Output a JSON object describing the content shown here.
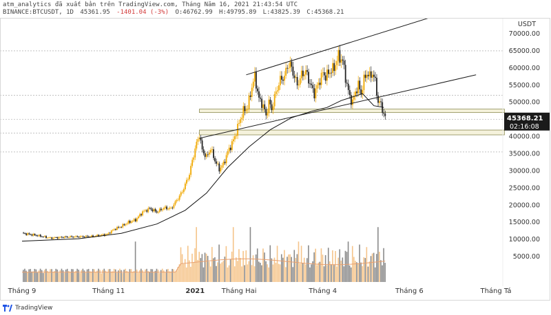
{
  "header": {
    "line1": "atm_analytics đã xuất bản trên TradingView.com, Tháng Năm 16, 2021 21:43:54 UTC",
    "symbol": "BINANCE:BTCUSDT, 1D",
    "last": "45361.95",
    "change": "-1401.04 (-3%)",
    "open": "O:46762.99",
    "high": "H:49795.89",
    "low": "L:43825.39",
    "close": "C:45368.21"
  },
  "footer": {
    "brand": "TradingView"
  },
  "colors": {
    "bull": "#f0a800",
    "bear": "#222222",
    "trend": "#1a1a1a",
    "zone": "#8a8a50",
    "volUp": "#f5c48a",
    "volDown": "#8a8a8a",
    "volMA": "#e8a070",
    "priceTag": "#1a1a1a"
  },
  "chart_data": {
    "type": "candlestick",
    "currency_label": "USDT",
    "y_ticks": [
      70000,
      65000,
      60000,
      55000,
      50000,
      45000,
      40000,
      35000,
      30000,
      25000,
      20000,
      15000,
      10000,
      5000
    ],
    "y_tick_labels": [
      "70000.00",
      "65000.00",
      "60000.00",
      "55000.00",
      "50000.00",
      "",
      "40000.00",
      "35000.00",
      "30000.00",
      "25000.00",
      "20000.00",
      "15000.00",
      "10000.00",
      "5000.00"
    ],
    "ylim": [
      0,
      73000
    ],
    "x_labels": [
      "Tháng 9",
      "Tháng 11",
      "2021",
      "Tháng Hai",
      "Tháng 4",
      "Tháng 6",
      "Tháng Tá"
    ],
    "x_label_days": [
      0,
      61,
      122,
      153,
      212,
      273,
      334
    ],
    "last_price_tag": {
      "price": "45368.21",
      "countdown": "02:16:08",
      "value": 45368
    },
    "horizontal_levels": [
      65000,
      52000,
      45000,
      41000,
      35500
    ],
    "zones": [
      {
        "from_day": 125,
        "to_day": 340,
        "low": 47000,
        "high": 48000
      },
      {
        "from_day": 125,
        "to_day": 340,
        "low": 40500,
        "high": 41900
      }
    ],
    "trendlines": [
      {
        "d1": 158,
        "p1": 58000,
        "d2": 290,
        "p2": 75000
      },
      {
        "d1": 125,
        "p1": 39500,
        "d2": 320,
        "p2": 58000
      }
    ],
    "ma": [
      [
        0,
        9500
      ],
      [
        40,
        10200
      ],
      [
        70,
        11800
      ],
      [
        95,
        14500
      ],
      [
        115,
        18500
      ],
      [
        130,
        23500
      ],
      [
        145,
        31000
      ],
      [
        160,
        37000
      ],
      [
        175,
        42000
      ],
      [
        190,
        45500
      ],
      [
        205,
        47500
      ],
      [
        215,
        48500
      ],
      [
        225,
        50500
      ],
      [
        240,
        52500
      ],
      [
        248,
        49000
      ],
      [
        255,
        48500
      ]
    ],
    "price_path": [
      [
        0,
        11800
      ],
      [
        10,
        11200
      ],
      [
        20,
        10400
      ],
      [
        30,
        10700
      ],
      [
        40,
        10800
      ],
      [
        50,
        10900
      ],
      [
        60,
        11500
      ],
      [
        65,
        13000
      ],
      [
        70,
        13800
      ],
      [
        75,
        15000
      ],
      [
        80,
        15700
      ],
      [
        85,
        18000
      ],
      [
        90,
        19000
      ],
      [
        95,
        18000
      ],
      [
        100,
        19200
      ],
      [
        105,
        19000
      ],
      [
        110,
        22000
      ],
      [
        113,
        24000
      ],
      [
        116,
        27000
      ],
      [
        118,
        29000
      ],
      [
        120,
        33000
      ],
      [
        123,
        38000
      ],
      [
        125,
        40500
      ],
      [
        127,
        36000
      ],
      [
        130,
        34000
      ],
      [
        133,
        36500
      ],
      [
        136,
        33000
      ],
      [
        139,
        30500
      ],
      [
        142,
        32000
      ],
      [
        145,
        35500
      ],
      [
        148,
        38000
      ],
      [
        150,
        40000
      ],
      [
        153,
        44000
      ],
      [
        156,
        47500
      ],
      [
        159,
        48500
      ],
      [
        162,
        54500
      ],
      [
        164,
        57500
      ],
      [
        167,
        51000
      ],
      [
        170,
        49000
      ],
      [
        172,
        46000
      ],
      [
        174,
        50000
      ],
      [
        176,
        48000
      ],
      [
        179,
        53000
      ],
      [
        182,
        56500
      ],
      [
        185,
        57500
      ],
      [
        187,
        60500
      ],
      [
        189,
        61000
      ],
      [
        192,
        57500
      ],
      [
        194,
        55000
      ],
      [
        197,
        58000
      ],
      [
        200,
        59000
      ],
      [
        203,
        55500
      ],
      [
        206,
        52500
      ],
      [
        209,
        55500
      ],
      [
        212,
        58500
      ],
      [
        214,
        57500
      ],
      [
        217,
        59000
      ],
      [
        220,
        60000
      ],
      [
        223,
        63500
      ],
      [
        226,
        62000
      ],
      [
        229,
        55000
      ],
      [
        231,
        51500
      ],
      [
        233,
        50000
      ],
      [
        235,
        53000
      ],
      [
        237,
        55000
      ],
      [
        239,
        52500
      ],
      [
        241,
        56500
      ],
      [
        243,
        58500
      ],
      [
        245,
        57500
      ],
      [
        247,
        58500
      ],
      [
        249,
        56000
      ],
      [
        251,
        50000
      ],
      [
        253,
        49500
      ],
      [
        255,
        46500
      ],
      [
        256,
        45368
      ]
    ],
    "volume_scale_max": 30000
  }
}
